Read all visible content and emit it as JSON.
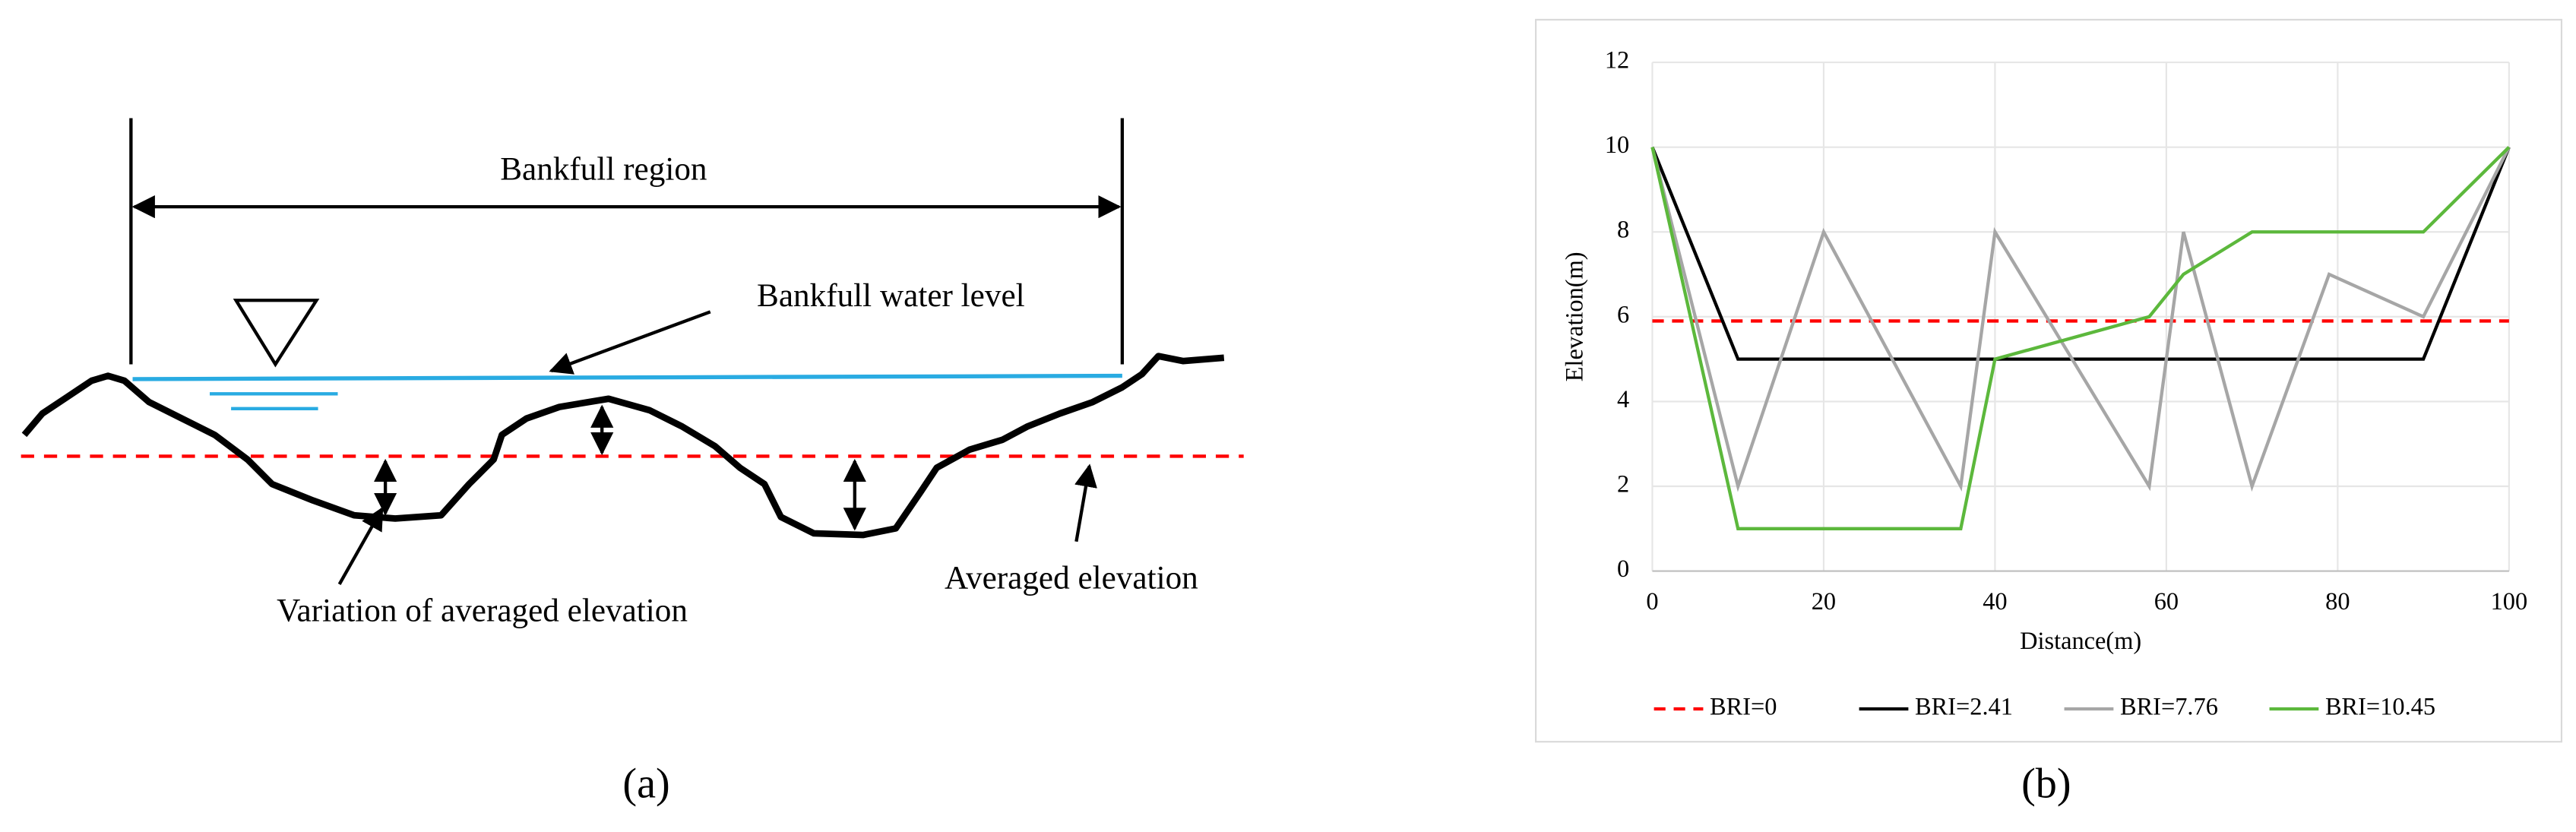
{
  "diagram": {
    "labels": [
      "Bankfull region",
      "Bankfull water level",
      "Variation  of averaged elevation",
      "Averaged elevation"
    ]
  },
  "captions": [
    "(a)",
    "(b)"
  ],
  "chart_data": {
    "type": "line",
    "x_label": "Distance(m)",
    "y_label": "Elevation(m)",
    "xlim": [
      0,
      100
    ],
    "xticks": [
      0,
      20,
      40,
      60,
      80,
      100
    ],
    "ylim": [
      0,
      12
    ],
    "yticks": [
      0,
      2,
      4,
      6,
      8,
      10,
      12
    ],
    "grid": true,
    "legend": "bottom",
    "series": [
      {
        "name": "BRI=0",
        "color": "#ff0000",
        "dashed": true,
        "x": [
          0,
          100
        ],
        "values": [
          5.9,
          5.9
        ]
      },
      {
        "name": "BRI=2.41",
        "color": "#000000",
        "x": [
          0,
          10,
          90,
          100
        ],
        "values": [
          10,
          5,
          5,
          10
        ]
      },
      {
        "name": "BRI=7.76",
        "color": "#a6a6a6",
        "x": [
          0,
          10,
          20,
          36,
          40,
          58,
          62,
          70,
          79,
          90,
          100
        ],
        "values": [
          10,
          2,
          8,
          2,
          8,
          2,
          8,
          2,
          7,
          6,
          10
        ]
      },
      {
        "name": "BRI=10.45",
        "color": "#5cb83c",
        "x": [
          0,
          10,
          36,
          40,
          58,
          62,
          70,
          90,
          100
        ],
        "values": [
          10,
          1,
          1,
          5,
          6,
          7,
          8,
          8,
          10
        ]
      }
    ]
  }
}
